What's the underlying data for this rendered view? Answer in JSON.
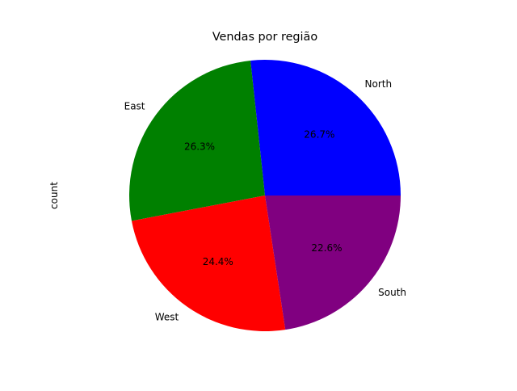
{
  "chart_data": {
    "type": "pie",
    "title": "Vendas por região",
    "ylabel": "count",
    "start_angle_deg": 0,
    "counterclock": true,
    "autopct_format": "%1.1f%%",
    "slices": [
      {
        "label": "North",
        "percent": 26.7,
        "percent_label": "26.7%",
        "color": "#0000ff"
      },
      {
        "label": "East",
        "percent": 26.3,
        "percent_label": "26.3%",
        "color": "#008000"
      },
      {
        "label": "West",
        "percent": 24.4,
        "percent_label": "24.4%",
        "color": "#ff0000"
      },
      {
        "label": "South",
        "percent": 22.6,
        "percent_label": "22.6%",
        "color": "#800080"
      }
    ]
  }
}
